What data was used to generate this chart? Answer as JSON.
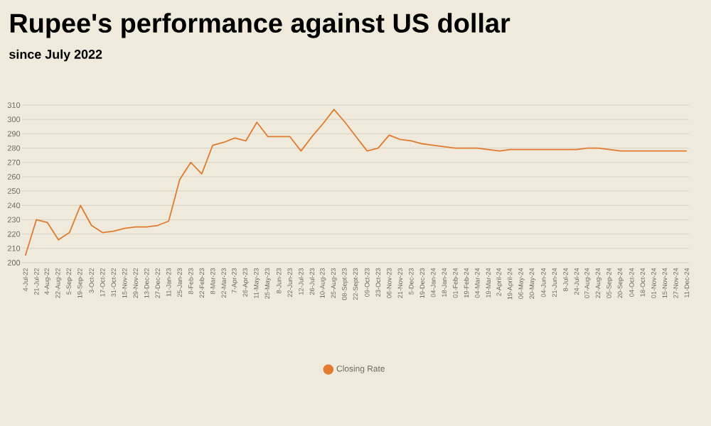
{
  "chart_data": {
    "type": "line",
    "title": "Rupee's performance against US dollar",
    "subtitle": "since July 2022",
    "categories": [
      "4-Jul-22",
      "21-Jul-22",
      "4-Aug-22",
      "22-Aug-22",
      "5-Sep-22",
      "19-Sep-22",
      "3-Oct-22",
      "17-Oct-22",
      "31-Oct-22",
      "15-Nov-22",
      "29-Nov-22",
      "13-Dec-22",
      "27-Dec-22",
      "11-Jan-23",
      "25-Jan-23",
      "8-Feb-23",
      "22-Feb-23",
      "8-Mar-23",
      "22-Mar-23",
      "7-Apr-23",
      "26-Apr-23",
      "11-May-23",
      "25-May-23",
      "8-Jun-23",
      "22-Jun-23",
      "12-Jul-23",
      "26-Jul-23",
      "10-Aug-23",
      "25-Aug-23",
      "08-Sept-23",
      "22-Sept-23",
      "09-Oct-23",
      "23-Oct-23",
      "06-Nov-23",
      "21-Nov-23",
      "5-Dec-23",
      "19-Dec-23",
      "04-Jan-24",
      "18-Jan-24",
      "01-Feb-24",
      "19-Feb-24",
      "04-Mar-24",
      "19-Mar-24",
      "2-April-24",
      "19-April-24",
      "06-May-24",
      "20-May-24",
      "04-Jun-24",
      "21-Jun-24",
      "8-Jul-24",
      "24-Jul-24",
      "07-Aug-24",
      "22-Aug-24",
      "05-Sep-24",
      "20-Sep-24",
      "04-Oct-24",
      "18-Oct-24",
      "01-Nov-24",
      "15-Nov-24",
      "27-Nov-24",
      "11-Dec-24"
    ],
    "series": [
      {
        "name": "Closing Rate",
        "color": "#e07b30",
        "values": [
          205,
          230,
          228,
          216,
          221,
          240,
          226,
          221,
          222,
          224,
          225,
          225,
          226,
          229,
          258,
          270,
          262,
          282,
          284,
          287,
          285,
          298,
          288,
          288,
          288,
          278,
          288,
          297,
          307,
          298,
          288,
          278,
          280,
          289,
          286,
          285,
          283,
          282,
          281,
          280,
          280,
          280,
          279,
          278,
          279,
          279,
          279,
          279,
          279,
          279,
          279,
          280,
          280,
          279,
          278,
          278,
          278,
          278,
          278,
          278,
          278
        ]
      }
    ],
    "ylim": [
      198,
      311
    ],
    "yticks": [
      200,
      210,
      220,
      230,
      240,
      250,
      260,
      270,
      280,
      290,
      300,
      310
    ],
    "grid": "y",
    "legend": "bottom"
  }
}
